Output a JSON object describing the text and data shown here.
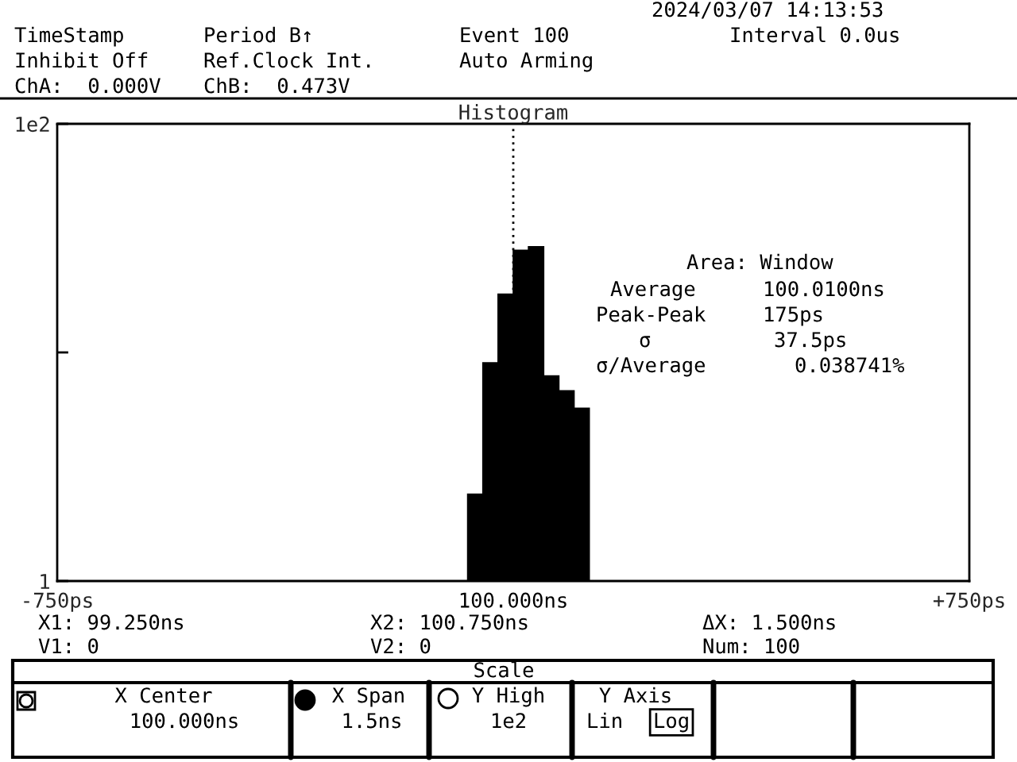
{
  "chart_data": {
    "type": "histogram",
    "title": "Histogram",
    "bins": [
      -75,
      -50,
      -25,
      0,
      25,
      50,
      75,
      100,
      125
    ],
    "values": [
      2.4,
      9.0,
      18,
      28,
      29,
      7.9,
      6.8,
      5.7
    ],
    "color": "#000000",
    "log": "y",
    "xlim": [
      -750,
      750
    ],
    "xticks": [
      {
        "value": -750,
        "label": "-750ps"
      },
      {
        "value": 750,
        "label": "+750ps"
      }
    ],
    "ylim": [
      1,
      100
    ],
    "yticks": [
      1,
      {
        "value": 10,
        "label": null
      },
      {
        "value": 100,
        "label": "1e2"
      }
    ],
    "ref_lines": [
      {
        "axis": "x",
        "value": 0,
        "label": "100.000ns",
        "color": "#000000",
        "line_style": "dotted"
      }
    ],
    "annotations": [
      "2024/03/07 14:13:53",
      "TimeStamp",
      "Period B↑",
      "Event 100",
      "Interval 0.0us",
      "Inhibit Off",
      "Ref.Clock Int.",
      "Auto Arming",
      "ChA:  0.000V",
      "ChB:  0.473V",
      "Area: Window",
      "Average",
      "100.0100ns",
      "Peak-Peak",
      "175ps",
      "σ",
      "37.5ps",
      "σ/Average",
      "0.038741%",
      "X1: 99.250ns",
      "X2: 100.750ns",
      "ΔX: 1.500ns",
      "V1: 0",
      "V2: 0",
      "Num: 100",
      "Scale",
      "X Center",
      "100.000ns",
      "X Span",
      "1.5ns",
      "Y High",
      "1e2",
      "Y Axis",
      "Lin",
      "Log"
    ]
  }
}
